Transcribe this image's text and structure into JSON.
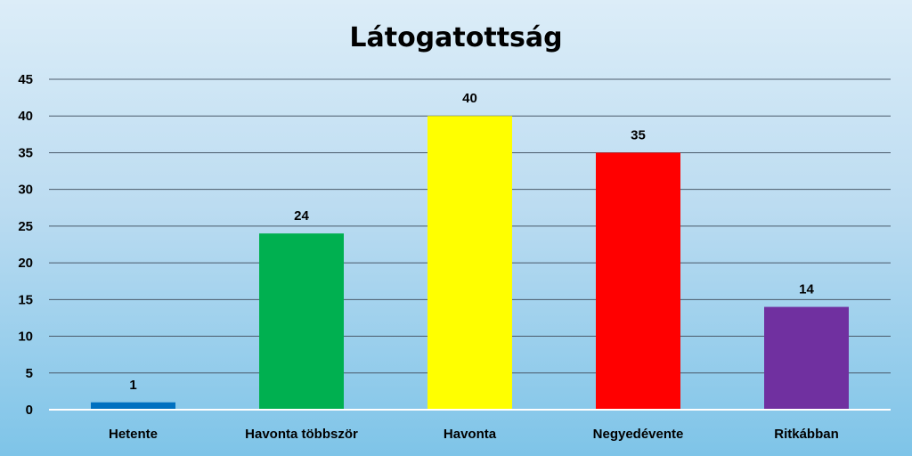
{
  "chart_data": {
    "type": "bar",
    "title": "Látogatottság",
    "categories": [
      "Hetente",
      "Havonta többször",
      "Havonta",
      "Negyedévente",
      "Ritkábban"
    ],
    "values": [
      1,
      24,
      40,
      35,
      14
    ],
    "colors": [
      "#0070c0",
      "#00b050",
      "#ffff00",
      "#ff0000",
      "#7030a0"
    ],
    "ylim": [
      0,
      45
    ],
    "yticks": [
      0,
      5,
      10,
      15,
      20,
      25,
      30,
      35,
      40,
      45
    ],
    "grid": true,
    "legend": "none",
    "data_labels": true
  }
}
